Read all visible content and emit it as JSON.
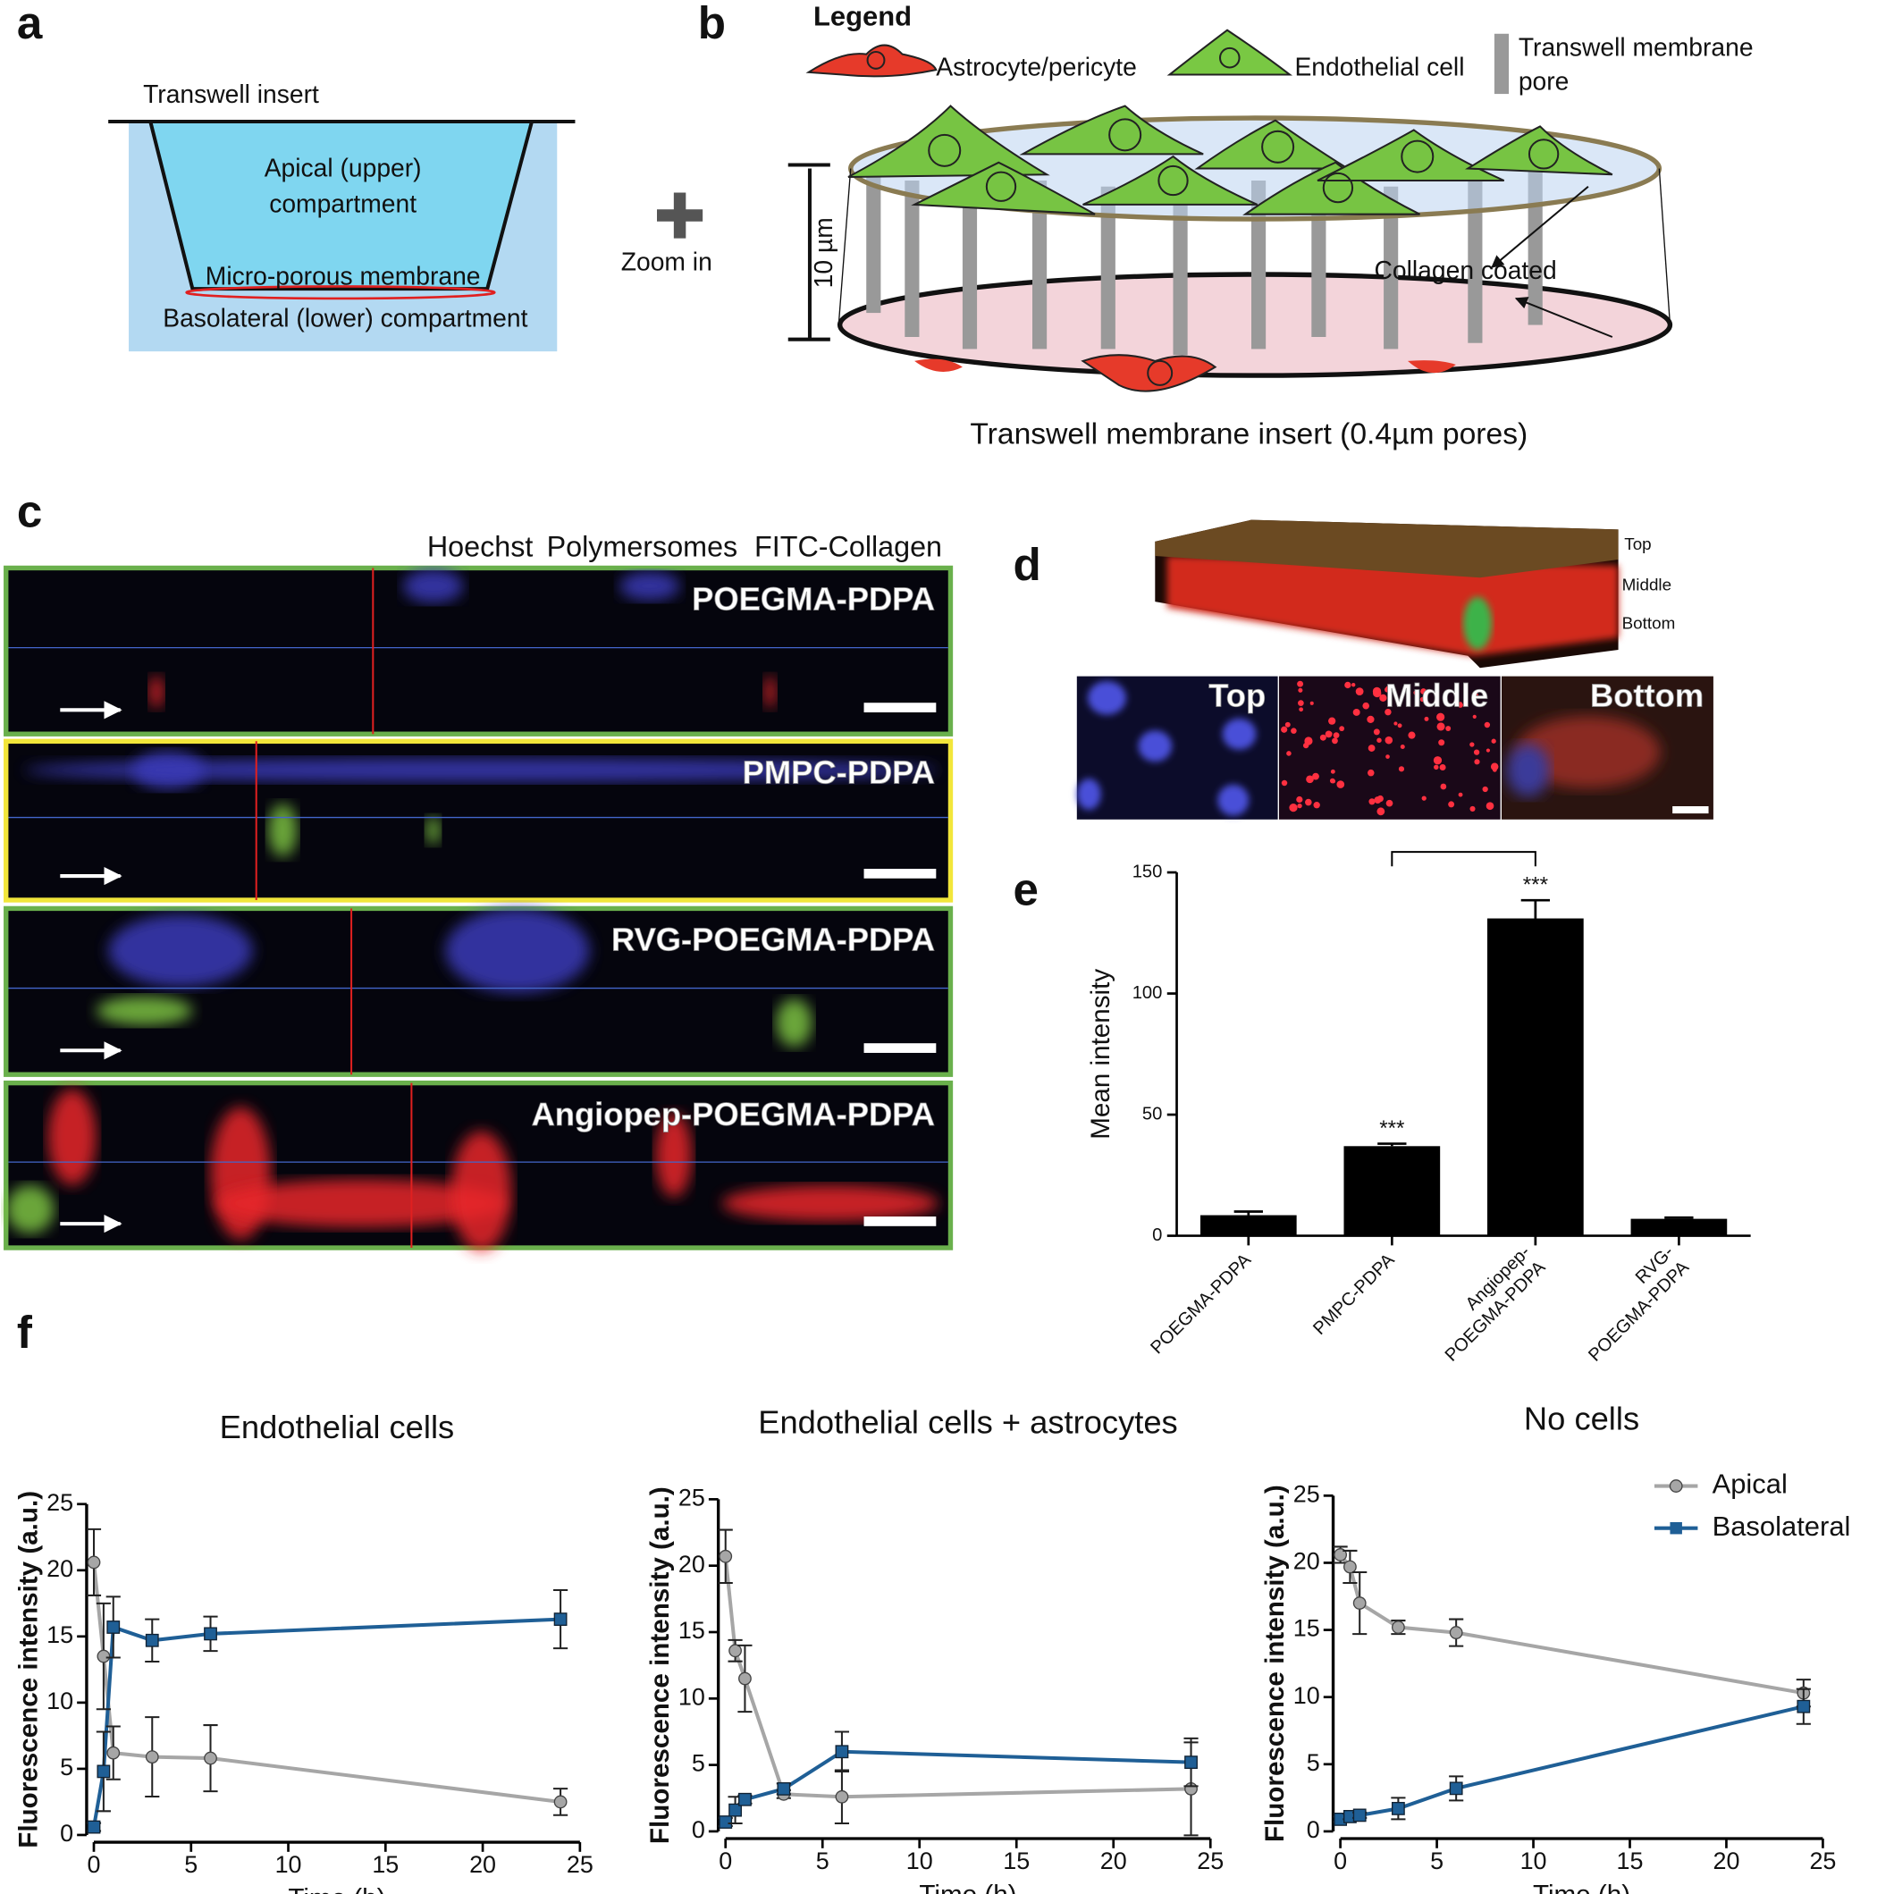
{
  "panel_labels": [
    "a",
    "b",
    "c",
    "d",
    "e",
    "f"
  ],
  "diagram_a": {
    "insert": "Transwell insert",
    "apical": [
      "Apical (upper)",
      "compartment"
    ],
    "membrane": "Micro-porous membrane",
    "basolateral": "Basolateral (lower) compartment",
    "zoom": "Zoom in"
  },
  "diagram_b": {
    "legend_title": "Legend",
    "legend": [
      "Astrocyte/pericyte",
      "Endothelial cell"
    ],
    "pore": [
      "Transwell membrane",
      "pore"
    ],
    "height": "10 µm",
    "coating": "Collagen coated",
    "caption": "Transwell membrane insert (0.4µm pores)"
  },
  "images_c": {
    "stains": [
      {
        "name": "Hoechst",
        "color": "#3a3ab8"
      },
      {
        "name": "Polymersomes",
        "color": "#e8262a"
      },
      {
        "name": "FITC-Collagen",
        "color": "#7dc242"
      }
    ],
    "panels": [
      {
        "name": "POEGMA-PDPA",
        "border": "#6ab04c"
      },
      {
        "name": "PMPC-PDPA",
        "border": "#f2e63a"
      },
      {
        "name": "RVG-POEGMA-PDPA",
        "border": "#6ab04c"
      },
      {
        "name": "Angiopep-POEGMA-PDPA",
        "border": "#6ab04c"
      }
    ]
  },
  "images_d": {
    "levels": [
      "Top",
      "Middle",
      "Bottom"
    ]
  },
  "chart_data": [
    {
      "type": "bar",
      "ylabel": "Mean intensity",
      "categories": [
        "POEGMA-PDPA",
        "PMPC-PDPA",
        "Angiopep-POEGMA-PDPA",
        "RVG-POEGMA-PDPA"
      ],
      "values": [
        8.5,
        37,
        131,
        7
      ],
      "errors": [
        1.5,
        1,
        7.5,
        0.5
      ],
      "color": "#000000",
      "ylim": [
        0,
        150
      ],
      "yticks": [
        0,
        50,
        100,
        150
      ],
      "annotations": [
        {
          "index": 1,
          "text": "***"
        },
        {
          "index": 2,
          "text": "***"
        }
      ],
      "comparison": [
        1,
        2
      ]
    },
    {
      "type": "line",
      "title": "Endothelial cells",
      "xlabel": "Time (h)",
      "ylabel": "Fluorescence intensity (a.u.)",
      "x": [
        0,
        0.5,
        1,
        3,
        6,
        24
      ],
      "xlim": [
        0,
        25
      ],
      "xticks": [
        0,
        5,
        10,
        15,
        20,
        25
      ],
      "ylim": [
        0,
        25
      ],
      "yticks": [
        0,
        5,
        10,
        15,
        20,
        25
      ],
      "series": [
        {
          "name": "Apical",
          "color": "#a6a6a6",
          "marker": "circle",
          "values": [
            20.6,
            13.5,
            6.2,
            5.9,
            5.8,
            2.5
          ],
          "errors": [
            2.5,
            4,
            2,
            3,
            2.5,
            1
          ]
        },
        {
          "name": "Basolateral",
          "color": "#1f5f96",
          "marker": "square",
          "values": [
            0.6,
            4.8,
            15.7,
            14.7,
            15.2,
            16.3
          ],
          "errors": [
            0.3,
            3,
            2.3,
            1.6,
            1.3,
            2.2
          ]
        }
      ]
    },
    {
      "type": "line",
      "title": "Endothelial cells  + astrocytes",
      "xlabel": "Time (h)",
      "ylabel": "Fluorescence intensity (a.u.)",
      "x": [
        0,
        0.5,
        1,
        3,
        6,
        24
      ],
      "xlim": [
        0,
        25
      ],
      "xticks": [
        0,
        5,
        10,
        15,
        20,
        25
      ],
      "ylim": [
        0,
        25
      ],
      "yticks": [
        0,
        5,
        10,
        15,
        20,
        25
      ],
      "series": [
        {
          "name": "Apical",
          "color": "#a6a6a6",
          "marker": "circle",
          "values": [
            20.7,
            13.6,
            11.5,
            2.8,
            2.6,
            3.2
          ],
          "errors": [
            2,
            0.8,
            2.5,
            0.3,
            2,
            3.5
          ]
        },
        {
          "name": "Basolateral",
          "color": "#1f5f96",
          "marker": "square",
          "values": [
            0.7,
            1.6,
            2.4,
            3.2,
            6,
            5.2
          ],
          "errors": [
            0.3,
            1,
            0.3,
            0.4,
            1.5,
            1.8
          ]
        }
      ]
    },
    {
      "type": "line",
      "title": "No cells",
      "xlabel": "Time (h)",
      "ylabel": "Fluorescence intensity (a.u.)",
      "legend": "upper right",
      "x": [
        0,
        0.5,
        1,
        3,
        6,
        24
      ],
      "xlim": [
        0,
        25
      ],
      "xticks": [
        0,
        5,
        10,
        15,
        20,
        25
      ],
      "ylim": [
        0,
        25
      ],
      "yticks": [
        0,
        5,
        10,
        15,
        20,
        25
      ],
      "series": [
        {
          "name": "Apical",
          "color": "#a6a6a6",
          "marker": "circle",
          "values": [
            20.6,
            19.7,
            17,
            15.2,
            14.8,
            10.3
          ],
          "errors": [
            0.6,
            1.2,
            2.3,
            0.5,
            1,
            1
          ]
        },
        {
          "name": "Basolateral",
          "color": "#1f5f96",
          "marker": "square",
          "values": [
            0.9,
            1.1,
            1.2,
            1.7,
            3.2,
            9.3
          ],
          "errors": [
            0.2,
            0.2,
            0.2,
            0.8,
            0.9,
            1.3
          ]
        }
      ]
    }
  ]
}
